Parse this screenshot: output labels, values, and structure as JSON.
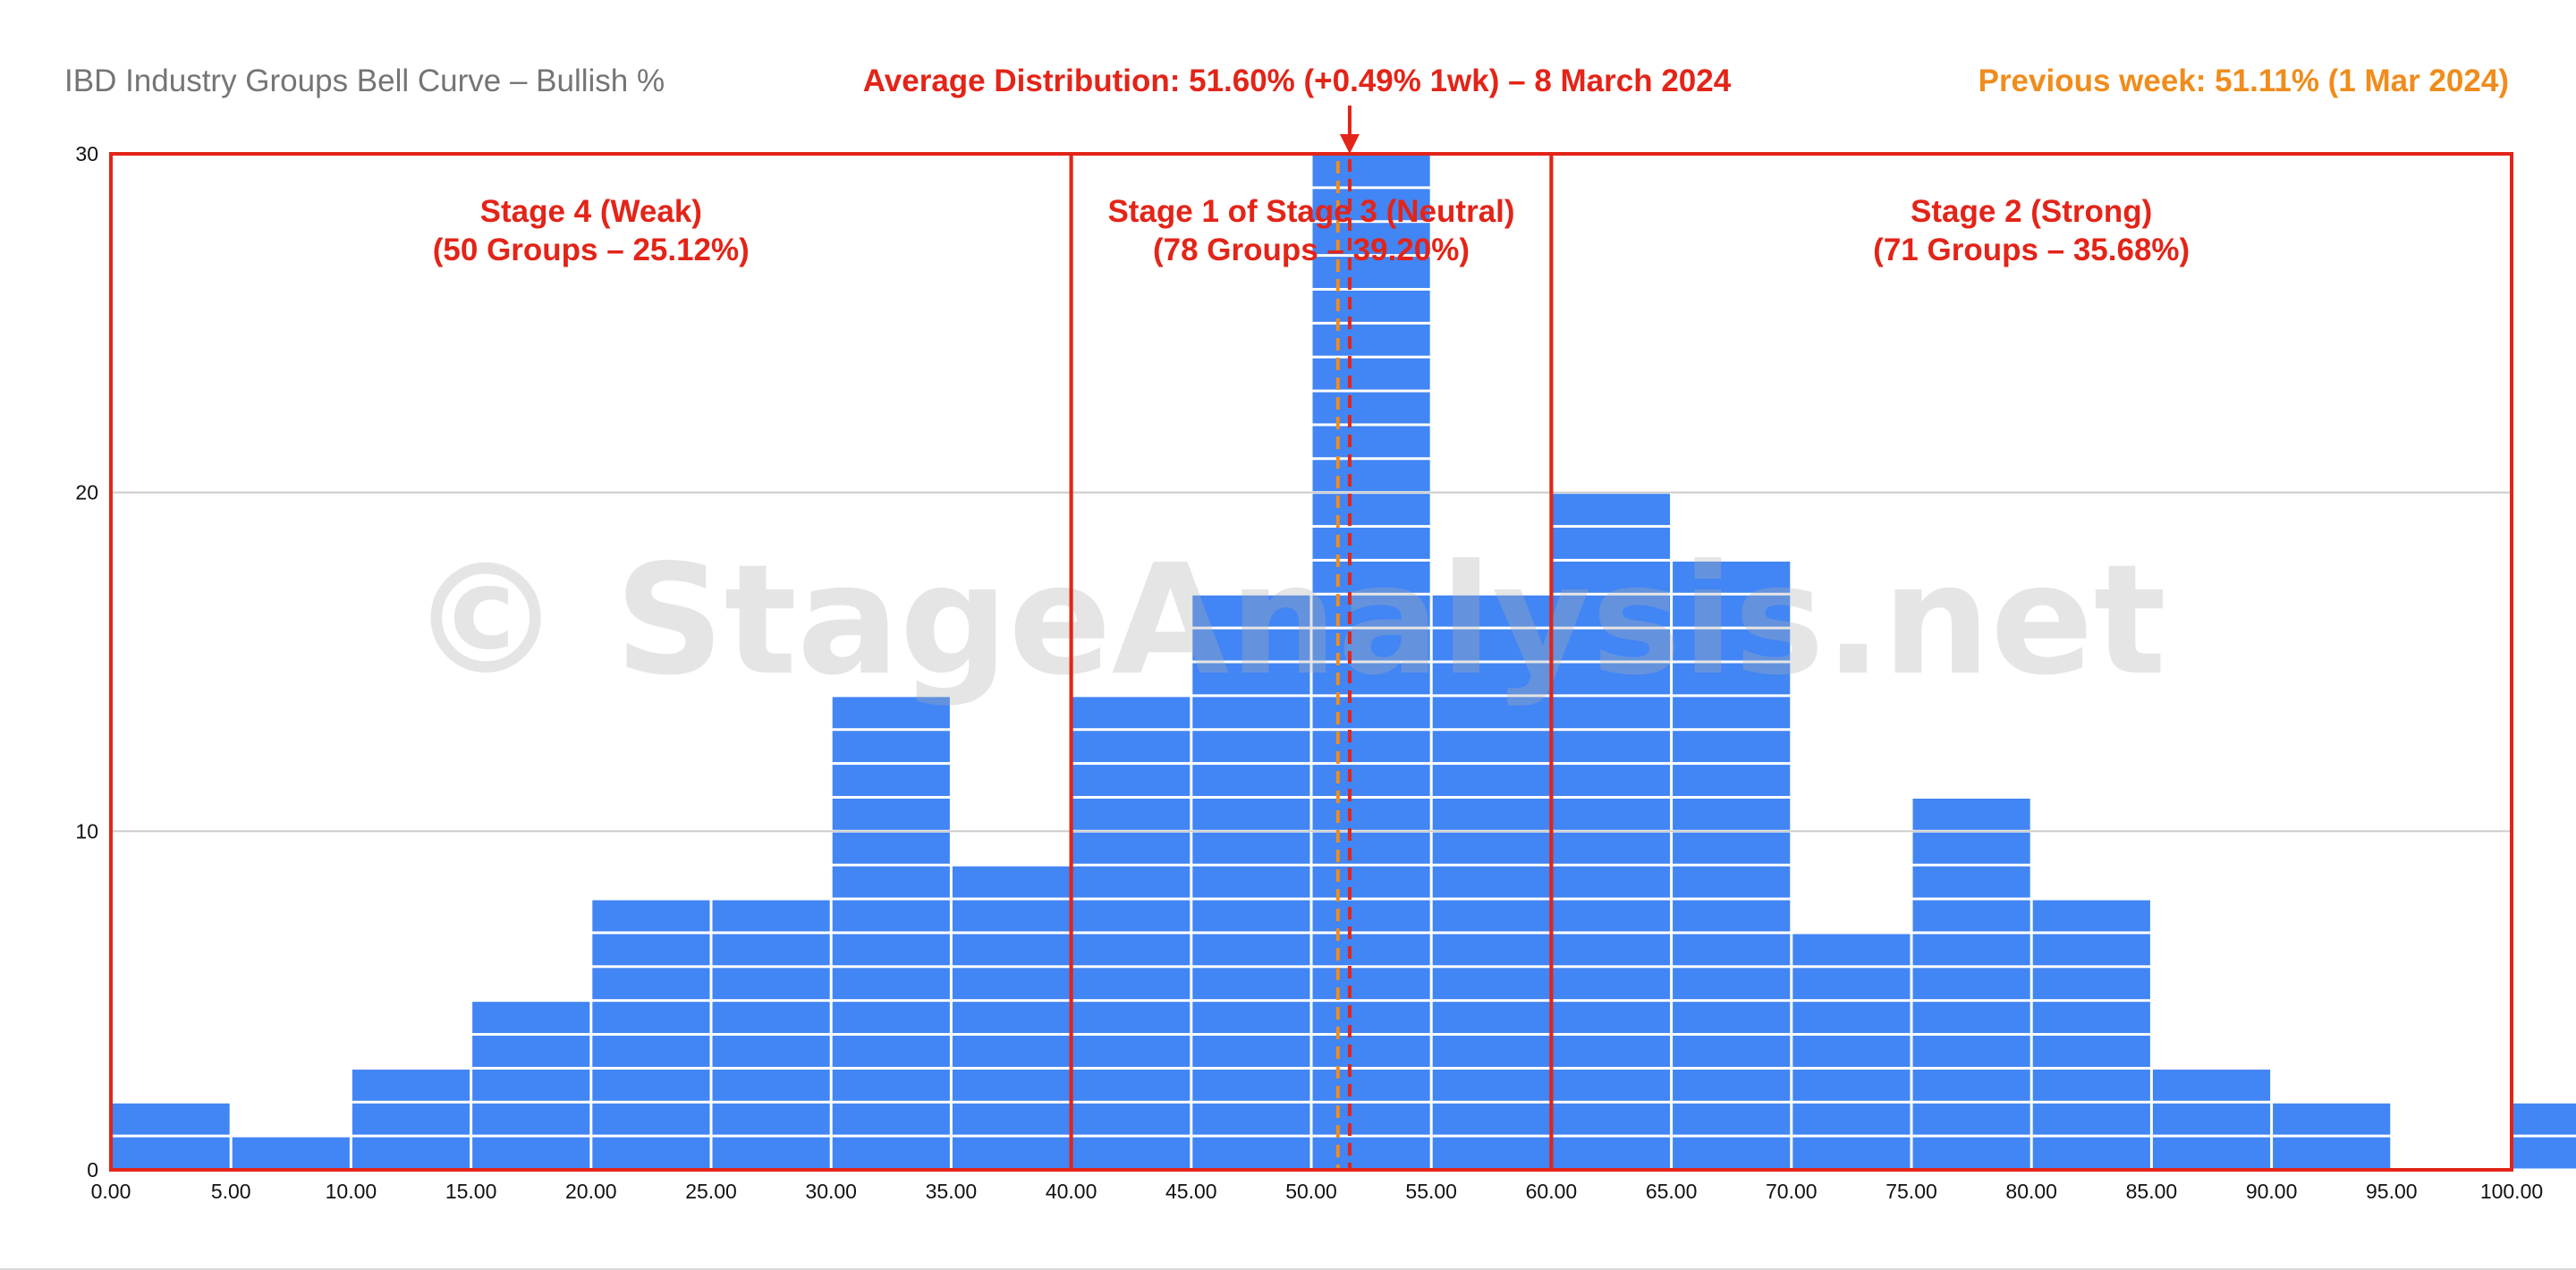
{
  "chart_data": {
    "type": "bar",
    "title": "IBD Industry Groups Bell Curve – Bullish %",
    "average_label": "Average Distribution: 51.60% (+0.49% 1wk) – 8 March 2024",
    "previous_label": "Previous week: 51.11% (1 Mar 2024)",
    "average_value": 51.6,
    "previous_value": 51.11,
    "watermark": "© StageAnalysis.net",
    "bin_edges": [
      0,
      5,
      10,
      15,
      20,
      25,
      30,
      35,
      40,
      45,
      50,
      55,
      60,
      65,
      70,
      75,
      80,
      85,
      90,
      95,
      100
    ],
    "x_tick_labels": [
      "0.00",
      "5.00",
      "10.00",
      "15.00",
      "20.00",
      "25.00",
      "30.00",
      "35.00",
      "40.00",
      "45.00",
      "50.00",
      "55.00",
      "60.00",
      "65.00",
      "70.00",
      "75.00",
      "80.00",
      "85.00",
      "90.00",
      "95.00",
      "100.00"
    ],
    "values": [
      2,
      1,
      3,
      5,
      8,
      8,
      14,
      9,
      14,
      17,
      30,
      17,
      20,
      18,
      7,
      11,
      8,
      3,
      2,
      0,
      2
    ],
    "y_ticks": [
      0,
      10,
      20,
      30
    ],
    "xlim": [
      0,
      100
    ],
    "ylim": [
      0,
      30
    ],
    "xlabel": "",
    "ylabel": "",
    "grid": true,
    "zones": [
      {
        "from": 0,
        "to": 40,
        "title": "Stage 4 (Weak)",
        "subtitle": "(50 Groups – 25.12%)"
      },
      {
        "from": 40,
        "to": 60,
        "title": "Stage 1 of Stage 3 (Neutral)",
        "subtitle": "(78 Groups – 39.20%)"
      },
      {
        "from": 60,
        "to": 100,
        "title": "Stage 2 (Strong)",
        "subtitle": "(71 Groups – 35.68%)"
      }
    ]
  },
  "colors": {
    "bar": "#4285f4",
    "zone": "#e32418",
    "average": "#e32418",
    "previous": "#f08c1c",
    "title": "#757575",
    "grid": "#cccccc",
    "watermark": "rgba(175,175,175,0.32)"
  }
}
